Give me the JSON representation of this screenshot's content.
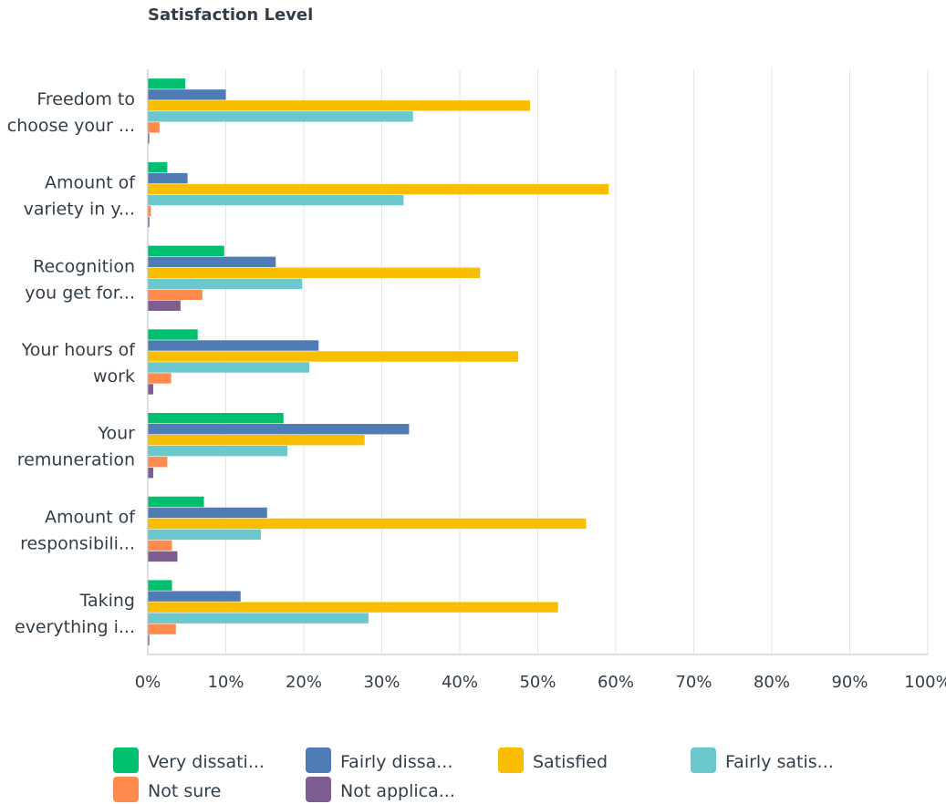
{
  "chart_data": {
    "type": "bar",
    "orientation": "horizontal",
    "title": "Satisfaction Level",
    "xlim": [
      0,
      100
    ],
    "x_ticks": [
      "0%",
      "10%",
      "20%",
      "30%",
      "40%",
      "50%",
      "60%",
      "70%",
      "80%",
      "90%",
      "100%"
    ],
    "grid": true,
    "legend_position": "bottom",
    "categories": [
      [
        "Freedom to",
        "choose your ..."
      ],
      [
        "Amount of",
        "variety in y..."
      ],
      [
        "Recognition",
        "you get for..."
      ],
      [
        "Your hours of",
        "work"
      ],
      [
        "Your",
        "remuneration"
      ],
      [
        "Amount of",
        "responsibili..."
      ],
      [
        "Taking",
        "everything i..."
      ]
    ],
    "series": [
      {
        "name": "Very dissati...",
        "color": "#00bf6f",
        "values": [
          4.8,
          2.5,
          9.8,
          6.4,
          17.4,
          7.2,
          3.1
        ]
      },
      {
        "name": "Fairly dissa...",
        "color": "#507cb6",
        "values": [
          10.0,
          5.1,
          16.4,
          21.9,
          33.5,
          15.3,
          11.9
        ]
      },
      {
        "name": "Satisfied",
        "color": "#f9be00",
        "values": [
          49.0,
          59.1,
          42.6,
          47.5,
          27.8,
          56.2,
          52.6
        ]
      },
      {
        "name": "Fairly satis...",
        "color": "#6bc8cd",
        "values": [
          34.0,
          32.8,
          19.8,
          20.7,
          17.9,
          14.5,
          28.3
        ]
      },
      {
        "name": "Not sure",
        "color": "#ff8b4f",
        "values": [
          1.5,
          0.4,
          7.0,
          3.0,
          2.5,
          3.1,
          3.6
        ]
      },
      {
        "name": "Not applica...",
        "color": "#7d5e90",
        "values": [
          0.2,
          0.2,
          4.2,
          0.7,
          0.7,
          3.8,
          0.2
        ]
      }
    ]
  }
}
